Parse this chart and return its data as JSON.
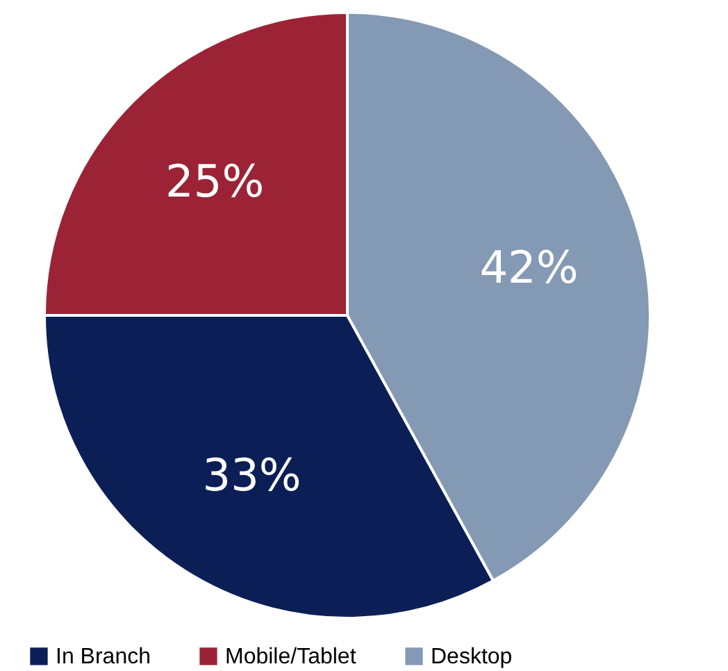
{
  "chart_data": {
    "type": "pie",
    "categories": [
      "In Branch",
      "Mobile/Tablet",
      "Desktop"
    ],
    "values": [
      33,
      25,
      42
    ],
    "colors": [
      "#0b1f56",
      "#9b2335",
      "#8499b3"
    ],
    "value_labels": [
      "33%",
      "25%",
      "42%"
    ],
    "legend": "bottom"
  }
}
